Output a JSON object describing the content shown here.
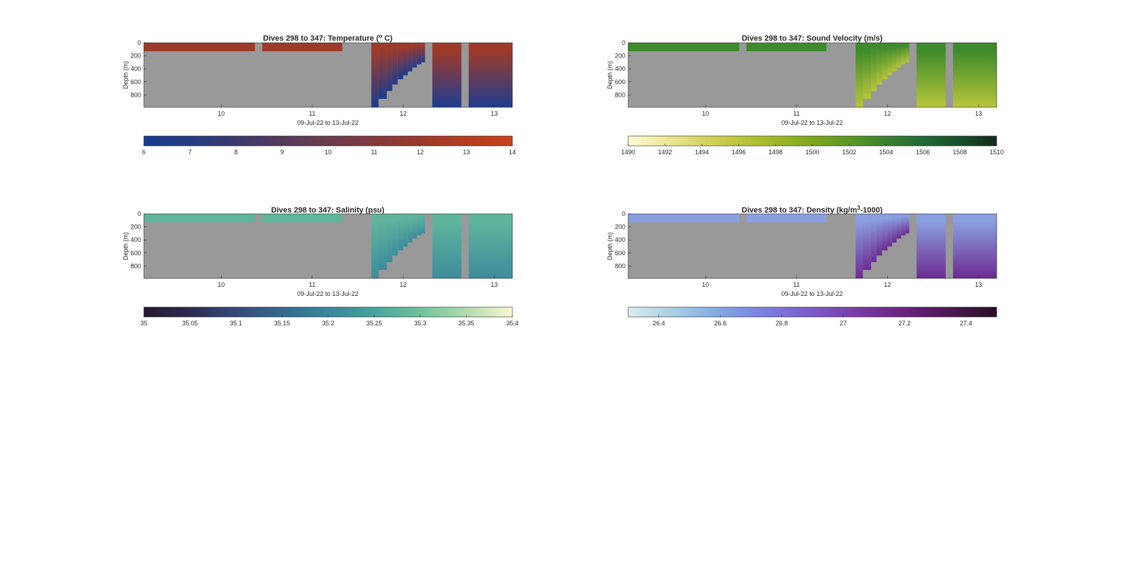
{
  "chart_data": [
    {
      "type": "heatmap",
      "title": "Dives 298 to 347: Temperature (",
      "title_sup": "o",
      "title_end": " C)",
      "ylabel": "Depth (m)",
      "xlabel": "09-Jul-22 to 13-Jul-22",
      "x_ticks": [
        "10",
        "11",
        "12",
        "13"
      ],
      "y_ticks": [
        "0",
        "200",
        "400",
        "600",
        "800"
      ],
      "xlim": [
        9.15,
        13.2
      ],
      "ylim": [
        0,
        990
      ],
      "colorbar": {
        "range": [
          6,
          14
        ],
        "ticks": [
          "6",
          "7",
          "8",
          "9",
          "10",
          "11",
          "12",
          "13",
          "14"
        ],
        "colors": [
          "#1a3a8c",
          "#243c82",
          "#3b3a6e",
          "#553a5e",
          "#6c3b4e",
          "#833a3c",
          "#9b3a2c",
          "#b43c1e",
          "#c9401a"
        ]
      },
      "surface_color": "#9e3a2a",
      "deep_color": "#1e3d8f",
      "nodata_color": "#999999"
    },
    {
      "type": "heatmap",
      "title": "Dives 298 to 347: Sound Velocity (m/s)",
      "ylabel": "Depth (m)",
      "xlabel": "09-Jul-22 to 13-Jul-22",
      "x_ticks": [
        "10",
        "11",
        "12",
        "13"
      ],
      "y_ticks": [
        "0",
        "200",
        "400",
        "600",
        "800"
      ],
      "xlim": [
        9.15,
        13.2
      ],
      "ylim": [
        0,
        990
      ],
      "colorbar": {
        "range": [
          1490,
          1510
        ],
        "ticks": [
          "1490",
          "1492",
          "1494",
          "1496",
          "1498",
          "1500",
          "1502",
          "1504",
          "1506",
          "1508",
          "1510"
        ],
        "colors": [
          "#fdf8d2",
          "#ece99b",
          "#d6d561",
          "#bcc53a",
          "#9fb826",
          "#7ea71f",
          "#5a9726",
          "#3a8130",
          "#226a35",
          "#18502d",
          "#102a1e"
        ]
      },
      "surface_color": "#3e8a2c",
      "deep_color": "#b8c53a",
      "nodata_color": "#999999"
    },
    {
      "type": "heatmap",
      "title": "Dives 298 to 347: Salinity (psu)",
      "ylabel": "Depth (m)",
      "xlabel": "09-Jul-22 to 13-Jul-22",
      "x_ticks": [
        "10",
        "11",
        "12",
        "13"
      ],
      "y_ticks": [
        "0",
        "200",
        "400",
        "600",
        "800"
      ],
      "xlim": [
        9.15,
        13.2
      ],
      "ylim": [
        0,
        990
      ],
      "colorbar": {
        "range": [
          35,
          35.4
        ],
        "ticks": [
          "35",
          "35.05",
          "35.1",
          "35.15",
          "35.2",
          "35.25",
          "35.3",
          "35.35",
          "35.4"
        ],
        "colors": [
          "#221a2e",
          "#2e2a52",
          "#334a7a",
          "#33698e",
          "#36879a",
          "#45a49e",
          "#6fc29d",
          "#b0dcab",
          "#fbf6d2"
        ]
      },
      "surface_color": "#5fb59c",
      "deep_color": "#3d8c9c",
      "nodata_color": "#999999"
    },
    {
      "type": "heatmap",
      "title": "Dives 298 to 347: Density (kg/m",
      "title_sup": "3",
      "title_end": "-1000)",
      "ylabel": "Depth (m)",
      "xlabel": "09-Jul-22 to 13-Jul-22",
      "x_ticks": [
        "10",
        "11",
        "12",
        "13"
      ],
      "y_ticks": [
        "0",
        "200",
        "400",
        "600",
        "800"
      ],
      "xlim": [
        9.15,
        13.2
      ],
      "ylim": [
        0,
        990
      ],
      "colorbar": {
        "range": [
          26.3,
          27.5
        ],
        "tick_values": [
          26.4,
          26.6,
          26.8,
          27,
          27.2,
          27.4
        ],
        "ticks": [
          "26.4",
          "26.6",
          "26.8",
          "27",
          "27.2",
          "27.4"
        ],
        "colors": [
          "#dbeef0",
          "#a7cde6",
          "#82a6e6",
          "#7a7ee0",
          "#7d59c8",
          "#7a3aa6",
          "#6a237e",
          "#4b1751",
          "#2a0d24"
        ]
      },
      "surface_color": "#8a9fe0",
      "deep_color": "#6c2a92",
      "nodata_color": "#999999"
    }
  ]
}
